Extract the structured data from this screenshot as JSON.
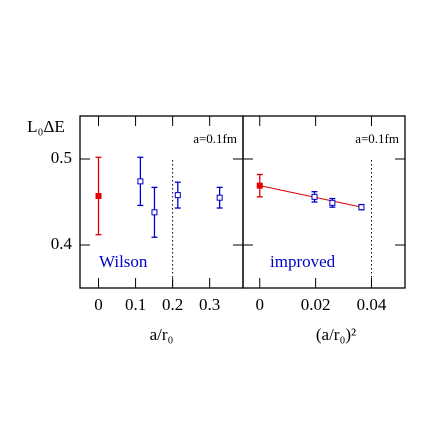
{
  "y_label": "L₀ΔE",
  "chart_data": [
    {
      "type": "errorbar",
      "xlabel": "a/r₀",
      "annotation": "a=0.1fm",
      "label": "Wilson",
      "label_color": "#0000cc",
      "xlim": [
        -0.05,
        0.39
      ],
      "xticks": [
        0,
        0.1,
        0.2,
        0.3
      ],
      "ylim": [
        0.35,
        0.55
      ],
      "yticks": [
        0.4,
        0.5
      ],
      "ytick_labels": true,
      "vline": 0.2,
      "series": [
        {
          "color": "#e00000",
          "marker": "filled",
          "x": [
            0
          ],
          "values": [
            0.457
          ],
          "errors": [
            0.045
          ]
        },
        {
          "color": "#0000cc",
          "marker": "open",
          "x": [
            0.113,
            0.151,
            0.214,
            0.327
          ],
          "values": [
            0.474,
            0.438,
            0.458,
            0.455
          ],
          "errors": [
            0.028,
            0.029,
            0.015,
            0.012
          ]
        }
      ]
    },
    {
      "type": "errorbar",
      "xlabel": "(a/r₀)²",
      "annotation": "a=0.1fm",
      "label": "improved",
      "label_color": "#0000cc",
      "xlim": [
        -0.006,
        0.052
      ],
      "xticks": [
        0,
        0.02,
        0.04
      ],
      "ylim": [
        0.35,
        0.55
      ],
      "yticks": [
        0.4,
        0.5
      ],
      "ytick_labels": false,
      "vline": 0.04,
      "series": [
        {
          "color": "#e00000",
          "marker": "filled",
          "x": [
            0
          ],
          "values": [
            0.469
          ],
          "errors": [
            0.013
          ]
        },
        {
          "color": "#0000cc",
          "marker": "open",
          "x": [
            0.0196,
            0.026,
            0.0364
          ],
          "values": [
            0.456,
            0.449,
            0.444
          ],
          "errors": [
            0.006,
            0.005,
            0.003
          ]
        }
      ],
      "fit": {
        "color": "#e00000",
        "x": [
          0,
          0.0364
        ],
        "values": [
          0.469,
          0.444
        ]
      }
    }
  ]
}
